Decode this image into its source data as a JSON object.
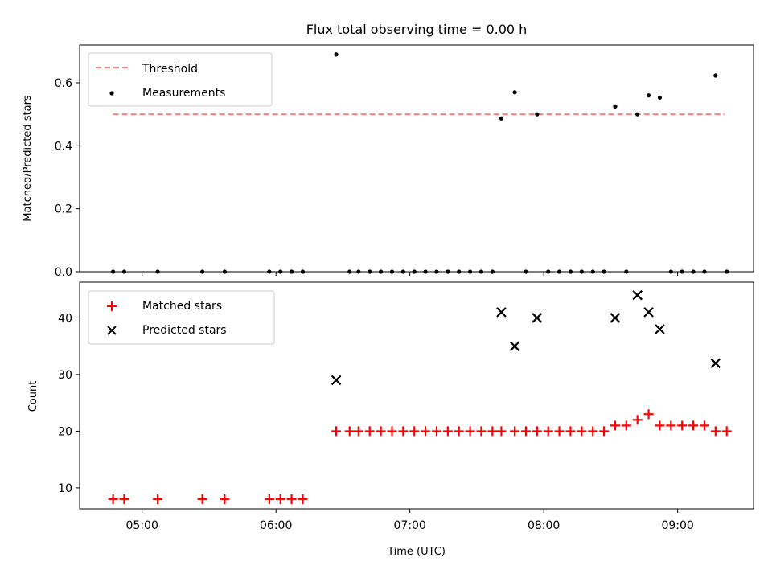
{
  "chart_data": [
    {
      "type": "scatter",
      "title": "Flux total observing time = 0.00 h",
      "ylabel": "Matched/Predicted stars",
      "xlabel": "",
      "x_unit": "time (UTC), minutes after 00:00",
      "xlim": [
        272,
        574
      ],
      "ylim": [
        0,
        0.72
      ],
      "yticks": [
        0.0,
        0.2,
        0.4,
        0.6
      ],
      "ytick_labels": [
        "0.0",
        "0.2",
        "0.4",
        "0.6"
      ],
      "threshold": {
        "name": "Threshold",
        "y": 0.5,
        "x_range": [
          287,
          561
        ],
        "color": "#ff7f7f"
      },
      "series": [
        {
          "name": "Measurements",
          "color": "#000000",
          "x": [
            287,
            292,
            307,
            327,
            337,
            357,
            362,
            367,
            372,
            387,
            393,
            397,
            402,
            407,
            412,
            417,
            422,
            427,
            432,
            437,
            442,
            447,
            452,
            457,
            461,
            467,
            472,
            477,
            482,
            487,
            492,
            497,
            502,
            507,
            512,
            517,
            522,
            527,
            532,
            537,
            542,
            547,
            552,
            557,
            562
          ],
          "y": [
            0,
            0,
            0,
            0,
            0,
            0,
            0,
            0,
            0,
            0.69,
            0,
            0,
            0,
            0,
            0,
            0,
            0,
            0,
            0,
            0,
            0,
            0,
            0,
            0,
            0.487,
            0.57,
            0,
            0.5,
            0,
            0,
            0,
            0,
            0,
            0,
            0.525,
            0,
            0.5,
            0.56,
            0.553,
            0,
            0,
            0,
            0,
            0.623,
            0
          ]
        }
      ],
      "legend": {
        "position": "upper-left",
        "entries": [
          "Threshold",
          "Measurements"
        ]
      }
    },
    {
      "type": "scatter",
      "title": "",
      "ylabel": "Count",
      "xlabel": "Time (UTC)",
      "x_unit": "time (UTC), minutes after 00:00",
      "xlim": [
        272,
        574
      ],
      "ylim": [
        6.3,
        46.3
      ],
      "xticks": [
        300,
        360,
        420,
        480,
        540
      ],
      "xtick_labels": [
        "05:00",
        "06:00",
        "07:00",
        "08:00",
        "09:00"
      ],
      "yticks": [
        10,
        20,
        30,
        40
      ],
      "ytick_labels": [
        "10",
        "20",
        "30",
        "40"
      ],
      "series": [
        {
          "name": "Matched stars",
          "color": "#ff0000",
          "marker": "plus",
          "x": [
            287,
            292,
            307,
            327,
            337,
            357,
            362,
            367,
            372,
            387,
            393,
            397,
            402,
            407,
            412,
            417,
            422,
            427,
            432,
            437,
            442,
            447,
            452,
            457,
            461,
            467,
            472,
            477,
            482,
            487,
            492,
            497,
            502,
            507,
            512,
            517,
            522,
            527,
            532,
            537,
            542,
            547,
            552,
            557,
            562
          ],
          "y": [
            8,
            8,
            8,
            8,
            8,
            8,
            8,
            8,
            8,
            20,
            20,
            20,
            20,
            20,
            20,
            20,
            20,
            20,
            20,
            20,
            20,
            20,
            20,
            20,
            20,
            20,
            20,
            20,
            20,
            20,
            20,
            20,
            20,
            20,
            21,
            21,
            22,
            23,
            21,
            21,
            21,
            21,
            21,
            20,
            20
          ]
        },
        {
          "name": "Predicted stars",
          "color": "#000000",
          "marker": "x",
          "x": [
            387,
            461,
            467,
            477,
            512,
            522,
            527,
            532,
            557
          ],
          "y": [
            29,
            41,
            35,
            40,
            40,
            44,
            41,
            38,
            32
          ]
        }
      ],
      "legend": {
        "position": "upper-left",
        "entries": [
          "Matched stars",
          "Predicted stars"
        ]
      }
    }
  ]
}
